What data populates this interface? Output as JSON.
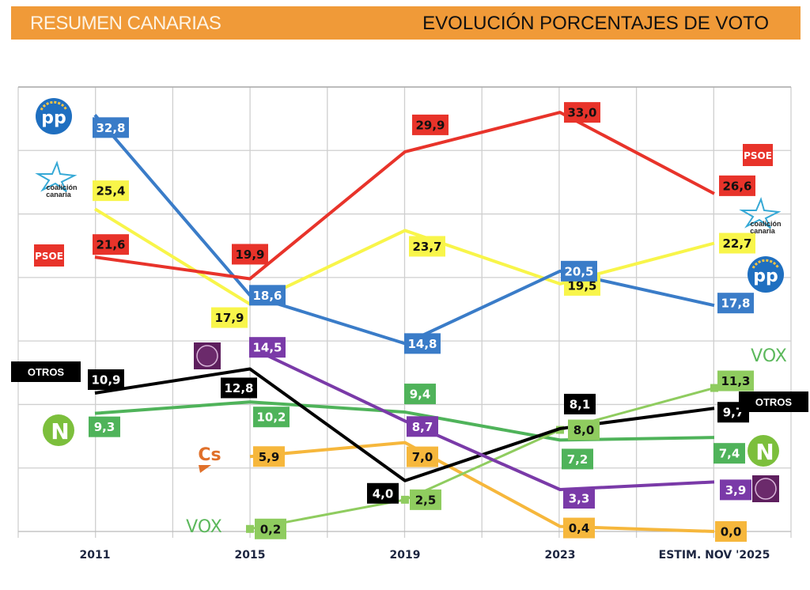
{
  "header": {
    "left_title": "RESUMEN CANARIAS",
    "right_title": "EVOLUCIÓN  PORCENTAJES DE VOTO",
    "color": "#f09a38"
  },
  "chart_data": {
    "type": "line",
    "categories": [
      "2011",
      "2015",
      "2019",
      "2023",
      "ESTIM. NOV '2025"
    ],
    "ylim": [
      0,
      35
    ],
    "grid": true,
    "series": [
      {
        "name": "PP",
        "logo": "PP",
        "color": "#3a7cc8",
        "label_text": "#ffffff",
        "values": [
          32.8,
          18.6,
          14.8,
          20.5,
          17.8
        ],
        "labels": [
          "32,8",
          "18,6",
          "14,8",
          "20,5",
          "17,8"
        ]
      },
      {
        "name": "Coalición Canaria",
        "logo": "coalición canaria",
        "color": "#f8f54a",
        "label_text": "#111111",
        "values": [
          25.4,
          17.9,
          23.7,
          19.5,
          22.7
        ],
        "labels": [
          "25,4",
          "17,9",
          "23,7",
          "19,5",
          "22,7"
        ]
      },
      {
        "name": "PSOE",
        "logo": "PSOE",
        "color": "#e8332a",
        "label_text": "#111111",
        "values": [
          21.6,
          19.9,
          29.9,
          33.0,
          26.6
        ],
        "labels": [
          "21,6",
          "19,9",
          "29,9",
          "33,0",
          "26,6"
        ]
      },
      {
        "name": "Podemos",
        "logo": "podemos-circle",
        "color": "#7a3aa8",
        "label_text": "#ffffff",
        "values": [
          null,
          14.5,
          8.7,
          3.3,
          3.9
        ],
        "labels": [
          null,
          "14,5",
          "8,7",
          "3,3",
          "3,9"
        ]
      },
      {
        "name": "OTROS",
        "logo": "OTROS",
        "color": "#000000",
        "label_text": "#ffffff",
        "values": [
          10.9,
          12.8,
          4.0,
          8.1,
          9.7
        ],
        "labels": [
          "10,9",
          "12,8",
          "4,0",
          "8,1",
          "9,7"
        ]
      },
      {
        "name": "Nueva Canarias",
        "logo": "N",
        "color": "#4fb35a",
        "label_text": "#ffffff",
        "values": [
          9.3,
          10.2,
          9.4,
          7.2,
          7.4
        ],
        "labels": [
          "9,3",
          "10,2",
          "9,4",
          "7,2",
          "7,4"
        ]
      },
      {
        "name": "Cs",
        "logo": "Cs",
        "color": "#f6b73c",
        "label_text": "#111111",
        "values": [
          null,
          5.9,
          7.0,
          0.4,
          0.0
        ],
        "labels": [
          null,
          "5,9",
          "7,0",
          "0,4",
          "0,0"
        ]
      },
      {
        "name": "VOX",
        "logo": "VOX",
        "color": "#8fcc5f",
        "label_text": "#111111",
        "values": [
          null,
          0.2,
          2.5,
          8.0,
          11.3
        ],
        "labels": [
          null,
          "0,2",
          "2,5",
          "8,0",
          "11,3"
        ]
      }
    ],
    "otros_tag": "OTROS"
  }
}
